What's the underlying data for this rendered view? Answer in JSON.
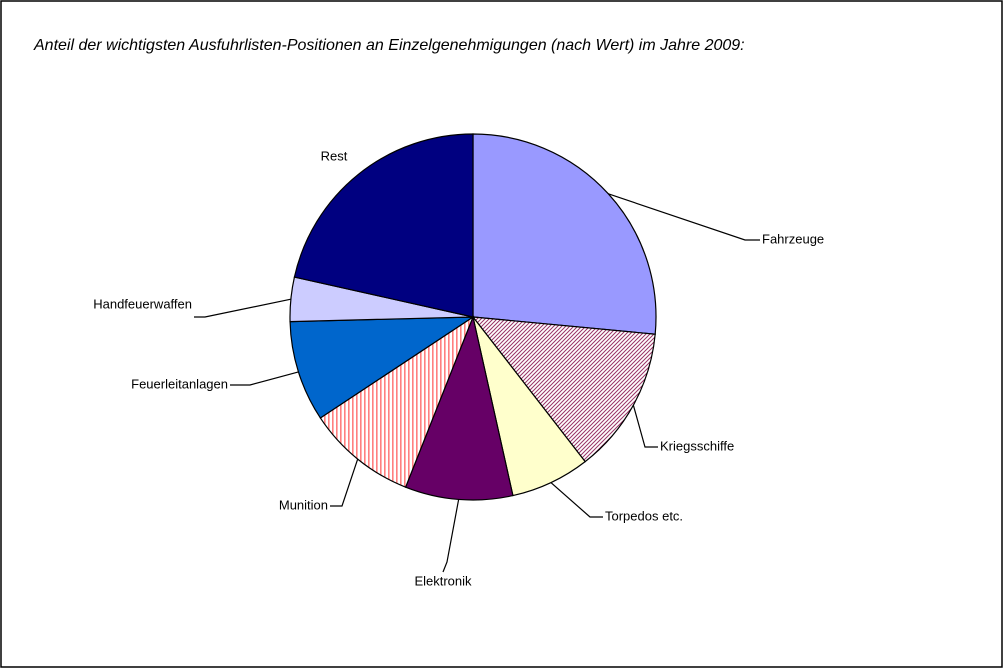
{
  "chart_data": {
    "type": "pie",
    "title": "Anteil der wichtigsten Ausfuhrlisten-Positionen an Einzelgenehmigungen (nach Wert) im Jahre 2009:",
    "categories": [
      "Fahrzeuge",
      "Kriegsschiffe",
      "Torpedos etc.",
      "Elektronik",
      "Munition",
      "Feuerleitanlagen",
      "Handfeuerwaffen",
      "Rest"
    ],
    "values": [
      26.5,
      13,
      7,
      9.5,
      9.7,
      8.9,
      3.9,
      21.5
    ],
    "colors": [
      "#9999ff",
      "#993366",
      "#ffffcc",
      "#660066",
      "#ff8080",
      "#0066cc",
      "#ccccff",
      "#000080"
    ],
    "patterns": [
      "solid",
      "diagonal",
      "solid",
      "solid",
      "vertical",
      "solid",
      "solid",
      "solid"
    ]
  }
}
